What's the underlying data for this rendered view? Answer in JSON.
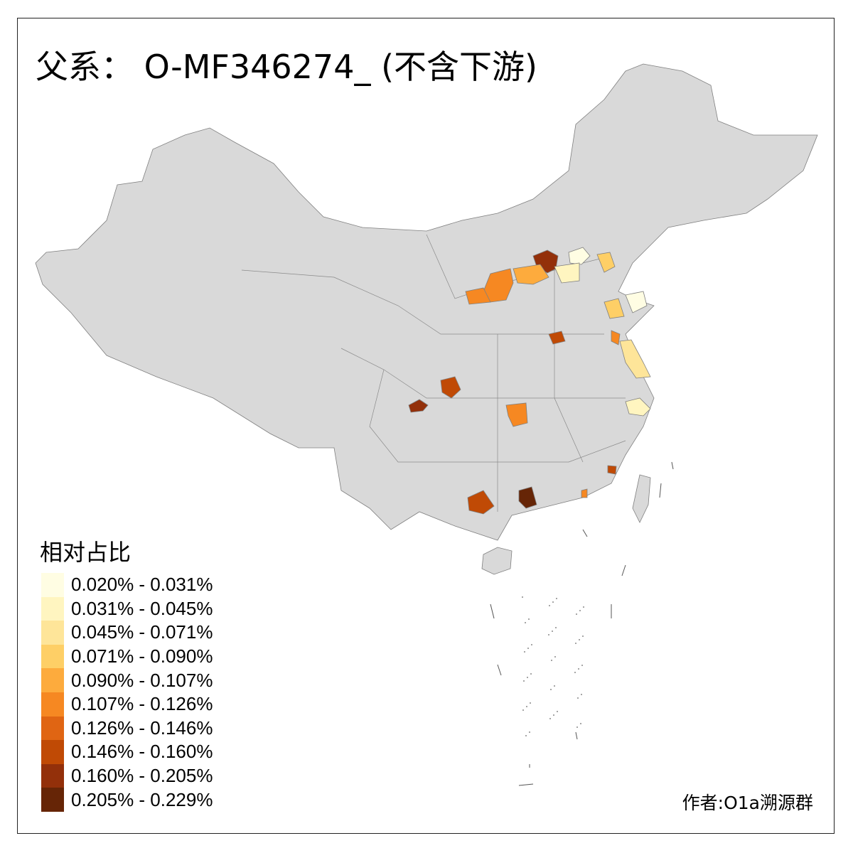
{
  "title": "父系： O-MF346274_ (不含下游)",
  "legend": {
    "title": "相对占比",
    "items": [
      {
        "label": "0.020% - 0.031%",
        "color": "#FFFDE3"
      },
      {
        "label": "0.031% - 0.045%",
        "color": "#FFF5C0"
      },
      {
        "label": "0.045% - 0.071%",
        "color": "#FEE599"
      },
      {
        "label": "0.071% - 0.090%",
        "color": "#FECF66"
      },
      {
        "label": "0.090% - 0.107%",
        "color": "#FDAB3D"
      },
      {
        "label": "0.107% - 0.126%",
        "color": "#F68822"
      },
      {
        "label": "0.126% - 0.146%",
        "color": "#E06513"
      },
      {
        "label": "0.146% - 0.160%",
        "color": "#C04A05"
      },
      {
        "label": "0.160% - 0.205%",
        "color": "#93300A"
      },
      {
        "label": "0.205% - 0.229%",
        "color": "#662506"
      }
    ]
  },
  "map": {
    "base_color": "#D9D9D9",
    "border_color": "#7F7F7F"
  },
  "author": "作者:O1a溯源群"
}
